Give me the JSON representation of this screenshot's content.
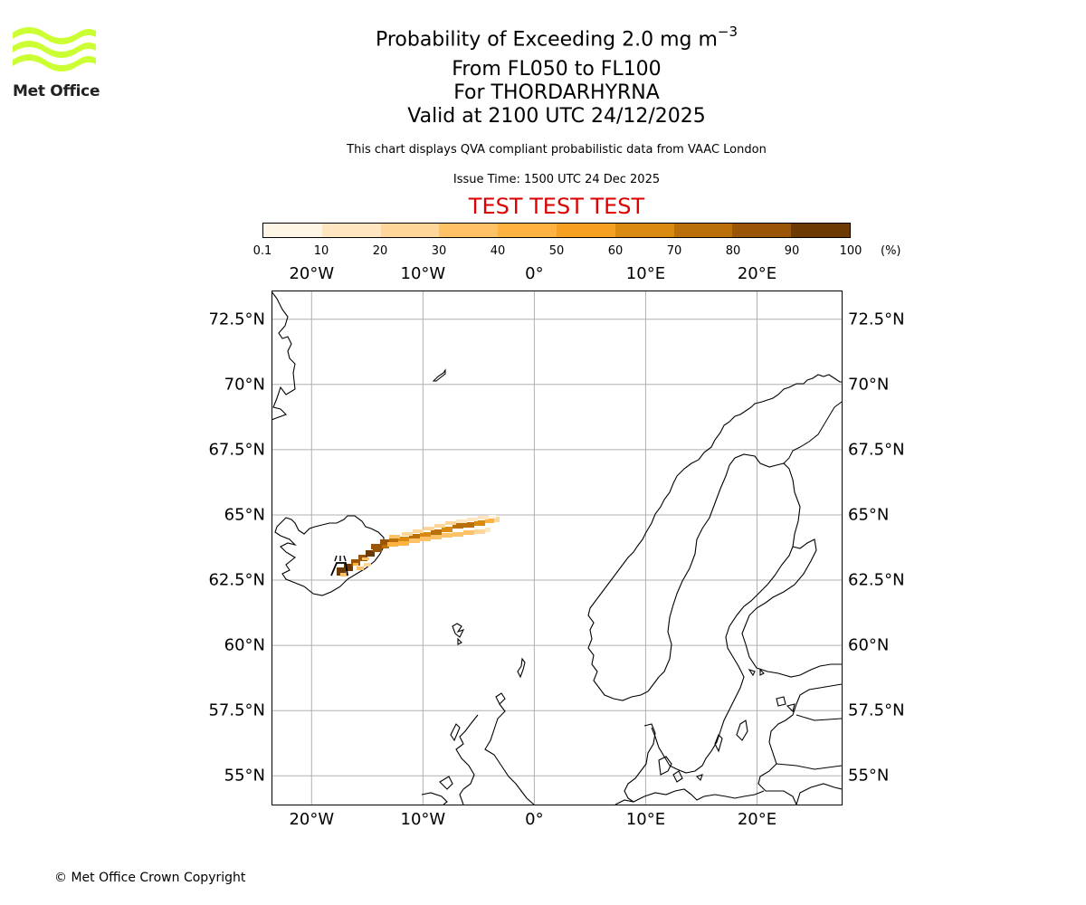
{
  "header": {
    "title_prefix": "Probability of Exceeding 2.0 mg m",
    "title_exponent": "−3",
    "level_range": "From FL050 to FL100",
    "volcano": "For THORDARHYRNA",
    "valid_time": "Valid at 2100 UTC 24/12/2025",
    "disclaimer": "This chart displays QVA compliant probabilistic data from VAAC London",
    "issue_time": "Issue Time: 1500 UTC 24 Dec 2025",
    "test_banner": "TEST TEST TEST",
    "test_color": "#dd0000"
  },
  "logo": {
    "name": "Met Office",
    "icon": "met-office-wave-logo",
    "color": "#ccff33"
  },
  "colorbar": {
    "ticks": [
      "0.1",
      "10",
      "20",
      "30",
      "40",
      "50",
      "60",
      "70",
      "80",
      "90",
      "100"
    ],
    "unit": "(%)",
    "colors": [
      "#fff5e6",
      "#ffe5c0",
      "#ffd699",
      "#ffc266",
      "#ffb23f",
      "#f5a020",
      "#d98a10",
      "#bb6f0a",
      "#9a5606",
      "#6e3a04"
    ]
  },
  "map": {
    "projection": "plate-carree",
    "lon_range": [
      -23.6,
      27.6
    ],
    "lat_range": [
      53.9,
      73.6
    ],
    "lon_ticks": [
      "20°W",
      "10°W",
      "0°",
      "10°E",
      "20°E"
    ],
    "lon_tick_values": [
      -20,
      -10,
      0,
      10,
      20
    ],
    "lat_ticks": [
      "72.5°N",
      "70°N",
      "67.5°N",
      "65°N",
      "62.5°N",
      "60°N",
      "57.5°N",
      "55°N"
    ],
    "lat_tick_values": [
      72.5,
      70,
      67.5,
      65,
      62.5,
      60,
      57.5,
      55
    ],
    "gridlines": true,
    "volcano_marker": "volcano-icon"
  },
  "footer": {
    "copyright": "© Met Office Crown Copyright"
  }
}
